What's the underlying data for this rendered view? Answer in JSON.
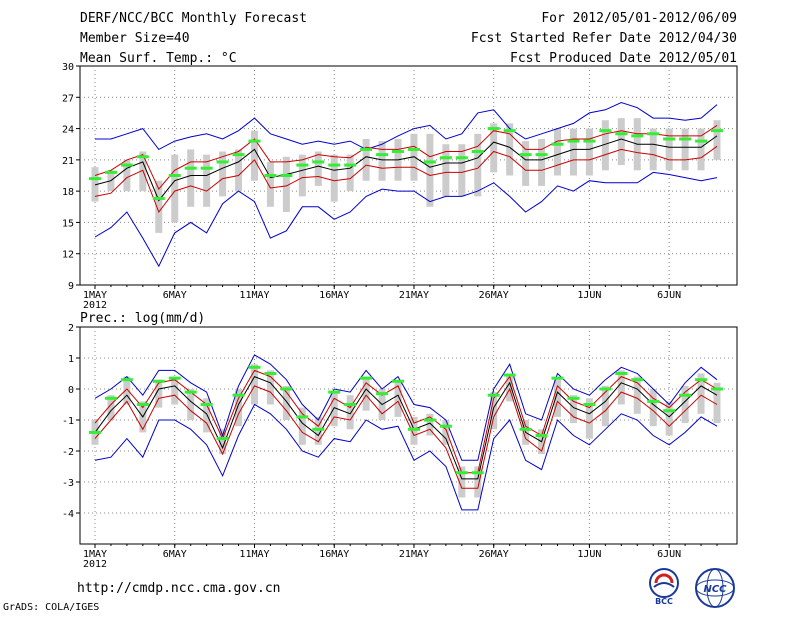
{
  "header": {
    "title": "DERF/NCC/BCC Monthly Forecast",
    "member_size": "Member Size=40",
    "variable": "Mean Surf. Temp.: °C",
    "period": "For 2012/05/01-2012/06/09",
    "refer_date": "Fcst Started Refer Date 2012/04/30",
    "produced_date": "Fcst Produced Date 2012/05/01"
  },
  "footer": {
    "url": "http://cmdp.ncc.cma.gov.cn",
    "grads": "GrADS: COLA/IGES",
    "logo_left_text": "BCC",
    "logo_right_text": "NCC"
  },
  "colors": {
    "envelope": "#0000cc",
    "spread": "#cc0000",
    "mean": "#000000",
    "bar": "#cccccc",
    "marker": "#33ee33"
  },
  "chart_data": [
    {
      "type": "line",
      "title": "Mean Surf. Temp.: °C",
      "ylim": [
        9,
        30
      ],
      "yticks": [
        9,
        12,
        15,
        18,
        21,
        24,
        27,
        30
      ],
      "x": [
        1,
        2,
        3,
        4,
        5,
        6,
        7,
        8,
        9,
        10,
        11,
        12,
        13,
        14,
        15,
        16,
        17,
        18,
        19,
        20,
        21,
        22,
        23,
        24,
        25,
        26,
        27,
        28,
        29,
        30,
        31,
        32,
        33,
        34,
        35,
        36,
        37,
        38,
        39,
        40
      ],
      "xtick_labels": [
        {
          "day": 1,
          "label": "1MAY",
          "sub": "2012"
        },
        {
          "day": 6,
          "label": "6MAY"
        },
        {
          "day": 11,
          "label": "11MAY"
        },
        {
          "day": 16,
          "label": "16MAY"
        },
        {
          "day": 21,
          "label": "21MAY"
        },
        {
          "day": 26,
          "label": "26MAY"
        },
        {
          "day": 32,
          "label": "1JUN"
        },
        {
          "day": 37,
          "label": "6JUN"
        }
      ],
      "series": [
        {
          "name": "max",
          "role": "envelope",
          "values": [
            23.0,
            23.0,
            23.5,
            24.0,
            22.0,
            22.8,
            23.2,
            23.5,
            23.0,
            23.8,
            25.0,
            23.5,
            23.0,
            22.5,
            22.8,
            22.5,
            22.8,
            22.0,
            22.5,
            23.3,
            24.0,
            24.3,
            23.0,
            23.5,
            25.5,
            25.8,
            24.0,
            23.0,
            23.5,
            24.0,
            24.5,
            25.5,
            25.8,
            26.5,
            26.0,
            25.0,
            25.0,
            24.8,
            25.0,
            26.3
          ]
        },
        {
          "name": "upper",
          "role": "spread",
          "values": [
            19.5,
            20.0,
            21.0,
            21.5,
            18.2,
            20.0,
            20.8,
            20.8,
            21.3,
            21.8,
            23.0,
            20.8,
            20.8,
            21.0,
            21.5,
            21.3,
            21.2,
            22.2,
            22.0,
            22.0,
            22.3,
            21.3,
            21.8,
            21.8,
            22.3,
            23.8,
            23.5,
            22.0,
            22.0,
            22.8,
            23.0,
            23.0,
            23.5,
            23.8,
            23.5,
            23.5,
            23.3,
            23.3,
            23.3,
            24.3
          ]
        },
        {
          "name": "mean",
          "role": "mean",
          "values": [
            18.6,
            19.0,
            20.2,
            20.8,
            17.1,
            19.0,
            19.5,
            19.5,
            20.2,
            20.8,
            22.0,
            19.3,
            19.6,
            20.0,
            20.4,
            20.0,
            20.2,
            21.3,
            21.0,
            21.0,
            21.3,
            20.3,
            20.7,
            20.7,
            21.2,
            22.7,
            22.2,
            21.0,
            21.0,
            21.5,
            22.0,
            22.0,
            22.5,
            23.0,
            22.5,
            22.5,
            22.2,
            22.2,
            22.2,
            23.3
          ]
        },
        {
          "name": "lower",
          "role": "spread",
          "values": [
            17.5,
            17.8,
            19.3,
            20.0,
            16.0,
            18.0,
            18.5,
            18.0,
            19.2,
            19.5,
            21.0,
            18.3,
            18.5,
            19.3,
            19.4,
            19.0,
            19.2,
            20.5,
            20.2,
            20.3,
            20.3,
            19.5,
            19.8,
            19.8,
            20.2,
            21.8,
            21.3,
            20.0,
            20.0,
            20.5,
            21.0,
            21.0,
            21.5,
            22.0,
            21.7,
            21.5,
            21.0,
            21.0,
            21.2,
            22.3
          ]
        },
        {
          "name": "min",
          "role": "envelope",
          "values": [
            13.6,
            14.5,
            16.0,
            13.5,
            10.8,
            14.0,
            15.0,
            14.0,
            16.8,
            18.0,
            17.0,
            13.5,
            14.2,
            16.5,
            16.5,
            15.3,
            16.0,
            17.5,
            18.2,
            18.0,
            18.0,
            17.0,
            17.5,
            17.5,
            18.0,
            18.8,
            17.5,
            16.0,
            17.0,
            18.5,
            18.0,
            19.0,
            18.8,
            18.8,
            18.8,
            19.8,
            19.6,
            19.3,
            19.0,
            19.3
          ]
        },
        {
          "name": "bar_top",
          "role": "bar",
          "values": [
            20.3,
            20.0,
            21.0,
            21.8,
            19.0,
            21.5,
            22.0,
            21.5,
            21.8,
            22.0,
            23.8,
            20.8,
            21.3,
            21.5,
            21.8,
            21.5,
            21.5,
            23.0,
            22.8,
            23.0,
            23.5,
            23.5,
            22.5,
            22.5,
            23.5,
            24.5,
            24.5,
            22.8,
            23.0,
            24.0,
            24.0,
            24.0,
            24.8,
            25.0,
            25.0,
            24.0,
            24.0,
            24.0,
            24.0,
            24.8
          ]
        },
        {
          "name": "bar_bottom",
          "role": "bar",
          "values": [
            17.0,
            18.0,
            18.0,
            18.0,
            14.0,
            15.0,
            16.5,
            16.5,
            17.5,
            18.0,
            19.0,
            16.5,
            16.0,
            17.5,
            18.5,
            17.0,
            18.0,
            19.0,
            19.0,
            19.0,
            19.0,
            16.5,
            17.5,
            17.5,
            17.5,
            19.8,
            19.5,
            18.5,
            18.5,
            19.5,
            19.5,
            19.5,
            20.0,
            20.5,
            20.0,
            20.0,
            20.0,
            20.0,
            20.0,
            21.0
          ]
        },
        {
          "name": "median",
          "role": "marker",
          "values": [
            19.2,
            19.8,
            20.5,
            21.3,
            17.3,
            19.5,
            20.2,
            20.2,
            20.8,
            21.5,
            22.8,
            19.5,
            19.5,
            20.5,
            20.8,
            20.5,
            20.5,
            22.0,
            21.5,
            21.8,
            22.0,
            20.8,
            21.2,
            21.2,
            21.8,
            24.0,
            23.8,
            21.5,
            21.5,
            22.5,
            22.8,
            22.8,
            23.8,
            23.5,
            23.3,
            23.5,
            23.0,
            23.0,
            22.8,
            23.8
          ]
        }
      ]
    },
    {
      "type": "line",
      "title": "Prec.: log(mm/d)",
      "ylim": [
        -5,
        2
      ],
      "yticks": [
        -4,
        -3,
        -2,
        -1,
        0,
        1,
        2
      ],
      "x": [
        1,
        2,
        3,
        4,
        5,
        6,
        7,
        8,
        9,
        10,
        11,
        12,
        13,
        14,
        15,
        16,
        17,
        18,
        19,
        20,
        21,
        22,
        23,
        24,
        25,
        26,
        27,
        28,
        29,
        30,
        31,
        32,
        33,
        34,
        35,
        36,
        37,
        38,
        39,
        40
      ],
      "xtick_labels": [
        {
          "day": 1,
          "label": "1MAY",
          "sub": "2012"
        },
        {
          "day": 6,
          "label": "6MAY"
        },
        {
          "day": 11,
          "label": "11MAY"
        },
        {
          "day": 16,
          "label": "16MAY"
        },
        {
          "day": 21,
          "label": "21MAY"
        },
        {
          "day": 26,
          "label": "26MAY"
        },
        {
          "day": 32,
          "label": "1JUN"
        },
        {
          "day": 37,
          "label": "6JUN"
        }
      ],
      "series": [
        {
          "name": "max",
          "role": "envelope",
          "values": [
            -0.3,
            0.0,
            0.4,
            -0.2,
            0.6,
            0.6,
            0.2,
            -0.1,
            -1.5,
            0.1,
            1.1,
            0.8,
            0.3,
            -0.5,
            -1.0,
            0.0,
            -0.1,
            0.6,
            0.0,
            0.4,
            -0.5,
            -0.6,
            -1.0,
            -2.3,
            -2.3,
            0.0,
            0.8,
            -0.8,
            -1.0,
            0.5,
            0.0,
            -0.2,
            0.3,
            0.7,
            0.5,
            0.0,
            -0.5,
            0.2,
            0.7,
            0.3
          ]
        },
        {
          "name": "upper",
          "role": "spread",
          "values": [
            -1.1,
            -0.5,
            0.0,
            -0.6,
            0.2,
            0.3,
            -0.1,
            -0.5,
            -1.6,
            -0.3,
            0.6,
            0.4,
            -0.1,
            -0.8,
            -1.2,
            -0.3,
            -0.6,
            0.2,
            -0.2,
            0.1,
            -1.1,
            -0.9,
            -1.3,
            -2.7,
            -2.7,
            -0.3,
            0.4,
            -1.2,
            -1.5,
            0.1,
            -0.4,
            -0.6,
            -0.1,
            0.4,
            0.2,
            -0.3,
            -0.6,
            -0.1,
            0.3,
            0.0
          ]
        },
        {
          "name": "mean",
          "role": "mean",
          "values": [
            -1.4,
            -0.7,
            -0.2,
            -0.9,
            0.0,
            0.1,
            -0.4,
            -0.8,
            -1.9,
            -0.5,
            0.4,
            0.2,
            -0.4,
            -1.1,
            -1.5,
            -0.6,
            -0.8,
            0.0,
            -0.5,
            -0.2,
            -1.3,
            -1.1,
            -1.6,
            -2.9,
            -2.9,
            -0.6,
            0.2,
            -1.4,
            -1.7,
            -0.1,
            -0.6,
            -0.8,
            -0.4,
            0.2,
            0.0,
            -0.5,
            -0.9,
            -0.4,
            0.1,
            -0.2
          ]
        },
        {
          "name": "lower",
          "role": "spread",
          "values": [
            -1.6,
            -1.0,
            -0.4,
            -1.3,
            -0.3,
            -0.2,
            -0.7,
            -1.1,
            -2.1,
            -0.8,
            0.1,
            -0.1,
            -0.7,
            -1.4,
            -1.7,
            -0.9,
            -1.0,
            -0.2,
            -0.8,
            -0.4,
            -1.5,
            -1.3,
            -1.9,
            -3.2,
            -3.2,
            -0.9,
            0.0,
            -1.6,
            -2.0,
            -0.4,
            -0.9,
            -1.1,
            -0.7,
            -0.1,
            -0.3,
            -0.7,
            -1.2,
            -0.7,
            -0.2,
            -0.5
          ]
        },
        {
          "name": "min",
          "role": "envelope",
          "values": [
            -2.3,
            -2.2,
            -1.6,
            -2.2,
            -1.0,
            -1.0,
            -1.3,
            -1.8,
            -2.8,
            -1.5,
            -0.5,
            -0.8,
            -1.3,
            -2.0,
            -2.2,
            -1.6,
            -1.7,
            -1.0,
            -1.3,
            -1.2,
            -2.3,
            -2.0,
            -2.5,
            -3.9,
            -3.9,
            -1.6,
            -1.0,
            -2.3,
            -2.6,
            -1.0,
            -1.5,
            -1.8,
            -1.3,
            -0.8,
            -1.0,
            -1.5,
            -1.8,
            -1.4,
            -0.9,
            -1.2
          ]
        },
        {
          "name": "bar_top",
          "role": "bar",
          "values": [
            -1.0,
            -0.2,
            0.4,
            -0.4,
            0.3,
            0.4,
            0.0,
            -0.3,
            -1.3,
            0.0,
            0.8,
            0.6,
            0.1,
            -0.6,
            -0.9,
            -0.1,
            -0.2,
            0.4,
            0.0,
            0.3,
            -0.9,
            -0.8,
            -1.0,
            -2.5,
            -2.5,
            -0.1,
            0.5,
            -1.0,
            -1.3,
            0.3,
            -0.2,
            -0.3,
            0.1,
            0.6,
            0.4,
            0.0,
            -0.4,
            0.1,
            0.5,
            0.2
          ]
        },
        {
          "name": "bar_bottom",
          "role": "bar",
          "values": [
            -1.8,
            -1.0,
            -0.5,
            -1.4,
            -0.6,
            -0.5,
            -1.0,
            -1.4,
            -2.1,
            -1.2,
            -0.5,
            -0.5,
            -1.0,
            -1.8,
            -1.8,
            -1.2,
            -1.3,
            -0.7,
            -1.0,
            -0.9,
            -1.8,
            -1.5,
            -1.8,
            -3.5,
            -3.5,
            -1.3,
            -0.4,
            -1.8,
            -2.1,
            -0.9,
            -1.1,
            -1.6,
            -1.2,
            -0.5,
            -0.8,
            -1.2,
            -1.5,
            -1.1,
            -0.8,
            -1.1
          ]
        },
        {
          "name": "median",
          "role": "marker",
          "values": [
            -1.4,
            -0.3,
            0.3,
            -0.5,
            0.25,
            0.35,
            -0.1,
            -0.5,
            -1.6,
            -0.2,
            0.7,
            0.5,
            0.0,
            -0.9,
            -1.3,
            -0.1,
            -0.5,
            0.35,
            -0.15,
            0.25,
            -1.3,
            -1.0,
            -1.2,
            -2.7,
            -2.7,
            -0.2,
            0.45,
            -1.3,
            -1.5,
            0.35,
            -0.3,
            -0.5,
            0.0,
            0.5,
            0.3,
            -0.4,
            -0.7,
            -0.2,
            0.3,
            0.0
          ]
        }
      ]
    }
  ]
}
